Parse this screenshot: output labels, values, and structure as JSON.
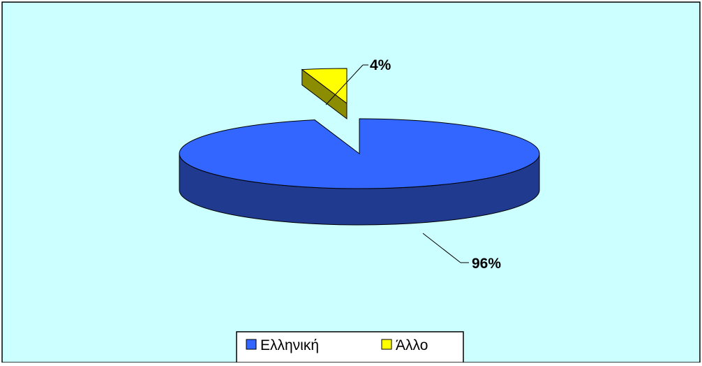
{
  "chart_data": {
    "type": "pie",
    "style": "3d-exploded",
    "categories": [
      "Ελληνική",
      "Άλλο"
    ],
    "values": [
      96,
      4
    ],
    "labels": [
      "96%",
      "4%"
    ],
    "colors": {
      "Ελληνική": "#3366FF",
      "Ελληνική_side": "#1F3A8F",
      "Άλλο": "#FFFF00",
      "Άλλο_side": "#8C8C00",
      "background": "#CCFFFF",
      "border": "#000000"
    },
    "legend": {
      "placement": "bottom",
      "entries": [
        "Ελληνική",
        "Άλλο"
      ]
    }
  }
}
